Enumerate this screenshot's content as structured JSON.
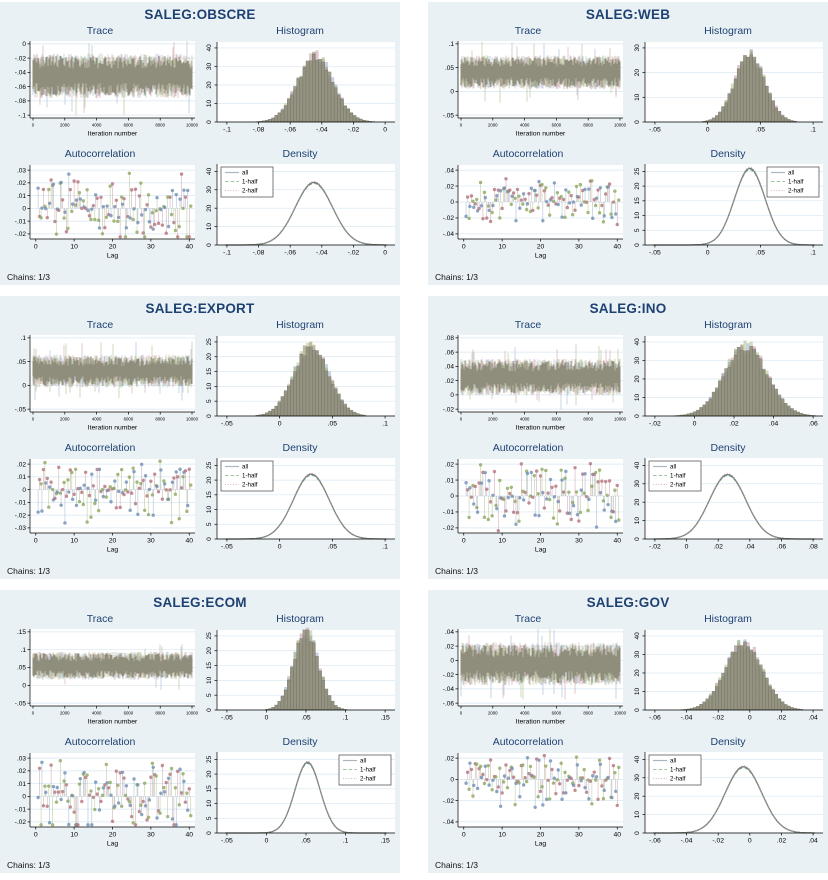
{
  "chains_note": "Chains: 1/3",
  "colors": {
    "page_bg": "#ffffff",
    "panel_bg": "#e9f1f5",
    "plot_bg": "#ffffff",
    "grid": "#d9e7f0",
    "axis": "#000000",
    "title": "#1e4172",
    "trace_core": "#8f8d7c",
    "trace_fringe": [
      "#9db4cc",
      "#cc9aa0",
      "#a9ba85"
    ],
    "hist_fill": "#918f7e",
    "hist_edge": "#6f6d5e",
    "ac_chains": [
      "#6f8fb4",
      "#b4737c",
      "#8fa85f"
    ],
    "density_lines": [
      "#6b7b80",
      "#6f9a76",
      "#c08f96"
    ],
    "legend_samples": [
      "#aab6bf",
      "#9cc4a0",
      "#d8b4b8"
    ]
  },
  "legend": {
    "items": [
      {
        "label": "all",
        "style": "solid"
      },
      {
        "label": "1-half",
        "style": "dashed"
      },
      {
        "label": "2-half",
        "style": "dotted"
      }
    ]
  },
  "chart_data": [
    {
      "title": "SALEG:OBSCRE",
      "trace": {
        "type": "line",
        "title": "Trace",
        "xlabel": "Iteration number",
        "xticks": [
          "0",
          "2000",
          "4000",
          "6000",
          "8000",
          "10000"
        ],
        "xlim": [
          0,
          10000
        ],
        "yticks": [
          "0",
          "-.02",
          "-.04",
          "-.06",
          "-.08",
          "-.1"
        ],
        "center": -0.045,
        "band": 0.028
      },
      "histogram": {
        "type": "bar",
        "title": "Histogram",
        "xticks": [
          "-.1",
          "-.08",
          "-.06",
          "-.04",
          "-.02",
          "0"
        ],
        "yticks": [
          "0",
          "10",
          "20",
          "30",
          "40"
        ],
        "mean": -0.044,
        "sd": 0.0115,
        "peak": 35
      },
      "autocorrelation": {
        "type": "scatter",
        "title": "Autocorrelation",
        "xlabel": "Lag",
        "xticks": [
          "0",
          "10",
          "20",
          "30",
          "40"
        ],
        "yticks": [
          ".03",
          ".02",
          ".01",
          "0",
          "-.01",
          "-.02"
        ],
        "amp": 0.026,
        "lags": 40,
        "chains": 3
      },
      "density": {
        "type": "line",
        "title": "Density",
        "xticks": [
          "-.1",
          "-.08",
          "-.06",
          "-.04",
          "-.02",
          "0"
        ],
        "yticks": [
          "0",
          "10",
          "20",
          "30",
          "40"
        ],
        "mean": -0.045,
        "sd": 0.0117,
        "peak": 34,
        "legend_pos": "left"
      }
    },
    {
      "title": "SALEG:WEB",
      "trace": {
        "type": "line",
        "title": "Trace",
        "xlabel": "Iteration number",
        "xticks": [
          "0",
          "2000",
          "4000",
          "6000",
          "8000",
          "10000"
        ],
        "xlim": [
          0,
          10000
        ],
        "yticks": [
          ".1",
          ".05",
          "0",
          "-.05"
        ],
        "center": 0.04,
        "band": 0.032
      },
      "histogram": {
        "type": "bar",
        "title": "Histogram",
        "xticks": [
          "-.05",
          "0",
          ".05",
          ".1"
        ],
        "yticks": [
          "0",
          "10",
          "20",
          "30"
        ],
        "mean": 0.04,
        "sd": 0.0145,
        "peak": 27
      },
      "autocorrelation": {
        "type": "scatter",
        "title": "Autocorrelation",
        "xlabel": "Lag",
        "xticks": [
          "0",
          "10",
          "20",
          "30",
          "40"
        ],
        "yticks": [
          ".04",
          ".02",
          "0",
          "-.02",
          "-.04"
        ],
        "amp": 0.028,
        "lags": 40,
        "chains": 3
      },
      "density": {
        "type": "line",
        "title": "Density",
        "xticks": [
          "-.05",
          "0",
          ".05",
          ".1"
        ],
        "yticks": [
          "0",
          "5",
          "10",
          "15",
          "20",
          "25"
        ],
        "mean": 0.04,
        "sd": 0.0145,
        "peak": 26,
        "legend_pos": "right"
      }
    },
    {
      "title": "SALEG:EXPORT",
      "trace": {
        "type": "line",
        "title": "Trace",
        "xlabel": "Iteration number",
        "xticks": [
          "0",
          "2000",
          "4000",
          "6000",
          "8000",
          "10000"
        ],
        "xlim": [
          0,
          10000
        ],
        "yticks": [
          ".1",
          ".05",
          "0",
          "-.05"
        ],
        "center": 0.03,
        "band": 0.031
      },
      "histogram": {
        "type": "bar",
        "title": "Histogram",
        "xticks": [
          "-.05",
          "0",
          ".05",
          ".1"
        ],
        "yticks": [
          "0",
          "5",
          "10",
          "15",
          "20",
          "25"
        ],
        "mean": 0.03,
        "sd": 0.017,
        "peak": 23
      },
      "autocorrelation": {
        "type": "scatter",
        "title": "Autocorrelation",
        "xlabel": "Lag",
        "xticks": [
          "0",
          "10",
          "20",
          "30",
          "40"
        ],
        "yticks": [
          ".02",
          ".01",
          "0",
          "-.01",
          "-.02",
          "-.03"
        ],
        "amp": 0.026,
        "lags": 40,
        "chains": 3
      },
      "density": {
        "type": "line",
        "title": "Density",
        "xticks": [
          "-.05",
          "0",
          ".05",
          ".1"
        ],
        "yticks": [
          "0",
          "5",
          "10",
          "15",
          "20",
          "25"
        ],
        "mean": 0.03,
        "sd": 0.017,
        "peak": 22,
        "legend_pos": "left"
      }
    },
    {
      "title": "SALEG:INO",
      "trace": {
        "type": "line",
        "title": "Trace",
        "xlabel": "Iteration number",
        "xticks": [
          "0",
          "2000",
          "4000",
          "6000",
          "8000",
          "10000"
        ],
        "xlim": [
          0,
          10000
        ],
        "yticks": [
          ".08",
          ".06",
          ".04",
          ".02",
          "0",
          "-.02"
        ],
        "center": 0.025,
        "band": 0.023
      },
      "histogram": {
        "type": "bar",
        "title": "Histogram",
        "xticks": [
          "-.02",
          "0",
          ".02",
          ".04",
          ".06"
        ],
        "yticks": [
          "0",
          "10",
          "20",
          "30",
          "40"
        ],
        "mean": 0.026,
        "sd": 0.011,
        "peak": 37
      },
      "autocorrelation": {
        "type": "scatter",
        "title": "Autocorrelation",
        "xlabel": "Lag",
        "xticks": [
          "0",
          "10",
          "20",
          "30",
          "40"
        ],
        "yticks": [
          ".02",
          ".01",
          "0",
          "-.01",
          "-.02"
        ],
        "amp": 0.021,
        "lags": 40,
        "chains": 3
      },
      "density": {
        "type": "line",
        "title": "Density",
        "xticks": [
          "-.02",
          "0",
          ".02",
          ".04",
          ".06",
          ".08"
        ],
        "yticks": [
          "0",
          "10",
          "20",
          "30",
          "40"
        ],
        "mean": 0.026,
        "sd": 0.0115,
        "peak": 35,
        "legend_pos": "left"
      }
    },
    {
      "title": "SALEG:ECOM",
      "trace": {
        "type": "line",
        "title": "Trace",
        "xlabel": "Iteration number",
        "xticks": [
          "0",
          "2000",
          "4000",
          "6000",
          "8000",
          "10000"
        ],
        "xlim": [
          0,
          10000
        ],
        "yticks": [
          ".15",
          ".1",
          ".05",
          "0",
          "-.05"
        ],
        "center": 0.055,
        "band": 0.035
      },
      "histogram": {
        "type": "bar",
        "title": "Histogram",
        "xticks": [
          "-.05",
          "0",
          ".05",
          ".1",
          ".15"
        ],
        "yticks": [
          "0",
          "5",
          "10",
          "15",
          "20",
          "25"
        ],
        "mean": 0.05,
        "sd": 0.016,
        "peak": 26
      },
      "autocorrelation": {
        "type": "scatter",
        "title": "Autocorrelation",
        "xlabel": "Lag",
        "xticks": [
          "0",
          "10",
          "20",
          "30",
          "40"
        ],
        "yticks": [
          ".03",
          ".02",
          ".01",
          "0",
          "-.01",
          "-.02"
        ],
        "amp": 0.027,
        "lags": 40,
        "chains": 3
      },
      "density": {
        "type": "line",
        "title": "Density",
        "xticks": [
          "-.05",
          "0",
          ".05",
          ".1",
          ".15"
        ],
        "yticks": [
          "0",
          "5",
          "10",
          "15",
          "20",
          "25"
        ],
        "mean": 0.052,
        "sd": 0.016,
        "peak": 24,
        "legend_pos": "right"
      }
    },
    {
      "title": "SALEG:GOV",
      "trace": {
        "type": "line",
        "title": "Trace",
        "xlabel": "Iteration number",
        "xticks": [
          "0",
          "2000",
          "4000",
          "6000",
          "8000",
          "10000"
        ],
        "xlim": [
          0,
          10000
        ],
        "yticks": [
          ".04",
          ".02",
          "0",
          "-.02",
          "-.04",
          "-.06"
        ],
        "center": -0.005,
        "band": 0.027
      },
      "histogram": {
        "type": "bar",
        "title": "Histogram",
        "xticks": [
          "-.06",
          "-.04",
          "-.02",
          "0",
          ".02",
          ".04"
        ],
        "yticks": [
          "0",
          "10",
          "20",
          "30",
          "40"
        ],
        "mean": -0.004,
        "sd": 0.012,
        "peak": 36
      },
      "autocorrelation": {
        "type": "scatter",
        "title": "Autocorrelation",
        "xlabel": "Lag",
        "xticks": [
          "0",
          "10",
          "20",
          "30",
          "40"
        ],
        "yticks": [
          ".02",
          "0",
          "-.02",
          "-.04"
        ],
        "amp": 0.024,
        "lags": 40,
        "chains": 3
      },
      "density": {
        "type": "line",
        "title": "Density",
        "xticks": [
          "-.06",
          "-.04",
          "-.02",
          "0",
          ".02",
          ".04"
        ],
        "yticks": [
          "0",
          "10",
          "20",
          "30",
          "40"
        ],
        "mean": -0.004,
        "sd": 0.0115,
        "peak": 36,
        "legend_pos": "left"
      }
    }
  ]
}
